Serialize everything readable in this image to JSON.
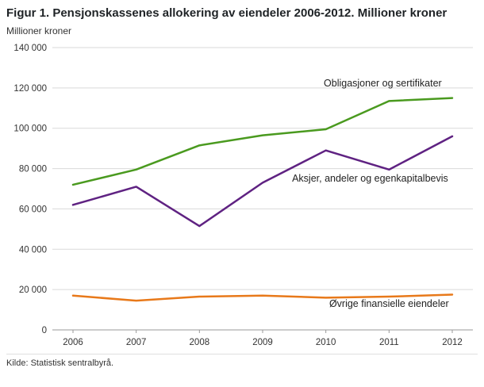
{
  "header": {
    "title": "Figur 1. Pensjonskassenes allokering av eiendeler 2006-2012. Millioner kroner",
    "subtitle": "Millioner kroner"
  },
  "footer": {
    "source": "Kilde: Statistisk sentralbyrå."
  },
  "chart_data": {
    "type": "line",
    "title": "Figur 1. Pensjonskassenes allokering av eiendeler 2006-2012. Millioner kroner",
    "ylabel": "Millioner kroner",
    "xlabel": "",
    "x": [
      2006,
      2007,
      2008,
      2009,
      2010,
      2011,
      2012
    ],
    "series": [
      {
        "name": "Obligasjoner og sertifikater",
        "color": "#4a9a1f",
        "values": [
          72000,
          79500,
          91500,
          96500,
          99500,
          113500,
          115000
        ]
      },
      {
        "name": "Aksjer, andeler og egenkapitalbevis",
        "color": "#5f2282",
        "values": [
          62000,
          71000,
          51500,
          73000,
          89000,
          79500,
          96000
        ]
      },
      {
        "name": "Øvrige finansielle eiendeler",
        "color": "#e8791a",
        "values": [
          17000,
          14500,
          16500,
          17000,
          16000,
          16500,
          17500
        ]
      }
    ],
    "annotations": [
      {
        "text": "Obligasjoner og sertifikater",
        "x": 2010.9,
        "y": 120800,
        "anchor": "middle"
      },
      {
        "text": "Aksjer, andeler og egenkapitalbevis",
        "x": 2010.7,
        "y": 73500,
        "anchor": "middle"
      },
      {
        "text": "Øvrige finansielle eiendeler",
        "x": 2011.0,
        "y": 11500,
        "anchor": "middle"
      }
    ],
    "ylim": [
      0,
      140000
    ],
    "ytick_step": 20000,
    "grid": true,
    "legend_position": "inline-annotations",
    "grid_color": "#d9d9d9",
    "axis_color": "#9a9a9a",
    "tick_label_color": "#333333",
    "annotation_color": "#222222"
  }
}
